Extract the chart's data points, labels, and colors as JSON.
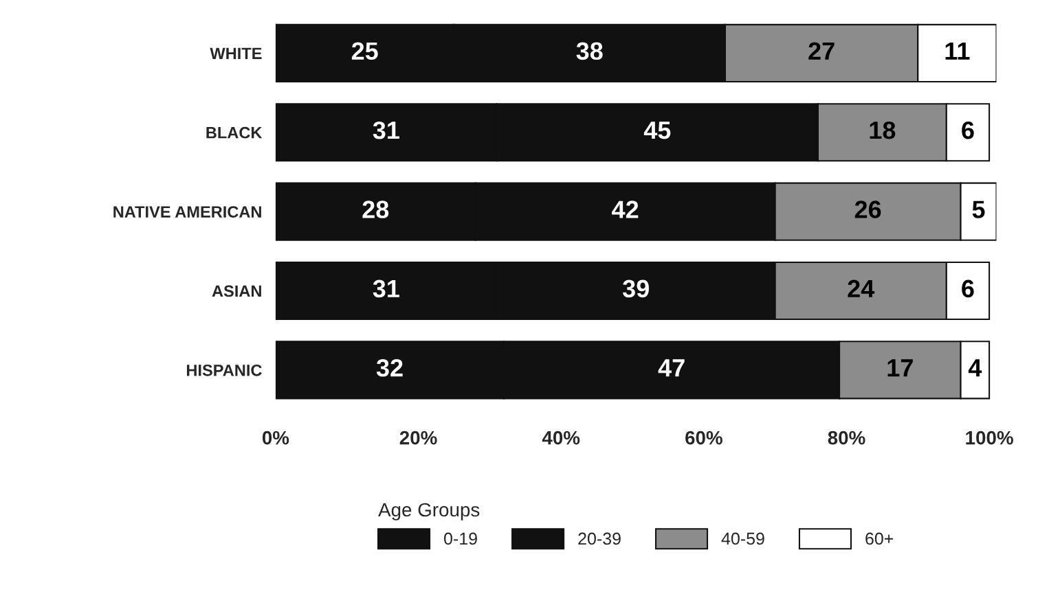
{
  "chart_data": {
    "type": "bar",
    "orientation": "horizontal",
    "stacked": true,
    "categories": [
      "WHITE",
      "BLACK",
      "NATIVE AMERICAN",
      "ASIAN",
      "HISPANIC"
    ],
    "series": [
      {
        "name": "0-19",
        "color": "#111111",
        "values": [
          25,
          31,
          28,
          31,
          32
        ]
      },
      {
        "name": "20-39",
        "color": "#111111",
        "values": [
          38,
          45,
          42,
          39,
          47
        ]
      },
      {
        "name": "40-59",
        "color": "#8c8c8c",
        "values": [
          27,
          18,
          26,
          24,
          17
        ]
      },
      {
        "name": "60+",
        "color": "#ffffff",
        "values": [
          11,
          6,
          5,
          6,
          4
        ]
      }
    ],
    "xlim": [
      0,
      101
    ],
    "xticks": [
      {
        "value": 0,
        "label": "0%"
      },
      {
        "value": 20,
        "label": "20%"
      },
      {
        "value": 40,
        "label": "40%"
      },
      {
        "value": 60,
        "label": "60%"
      },
      {
        "value": 80,
        "label": "80%"
      },
      {
        "value": 100,
        "label": "100%"
      }
    ],
    "data_labels": true,
    "legend": "bottom",
    "legend_title": "Age Groups",
    "grid": false
  }
}
